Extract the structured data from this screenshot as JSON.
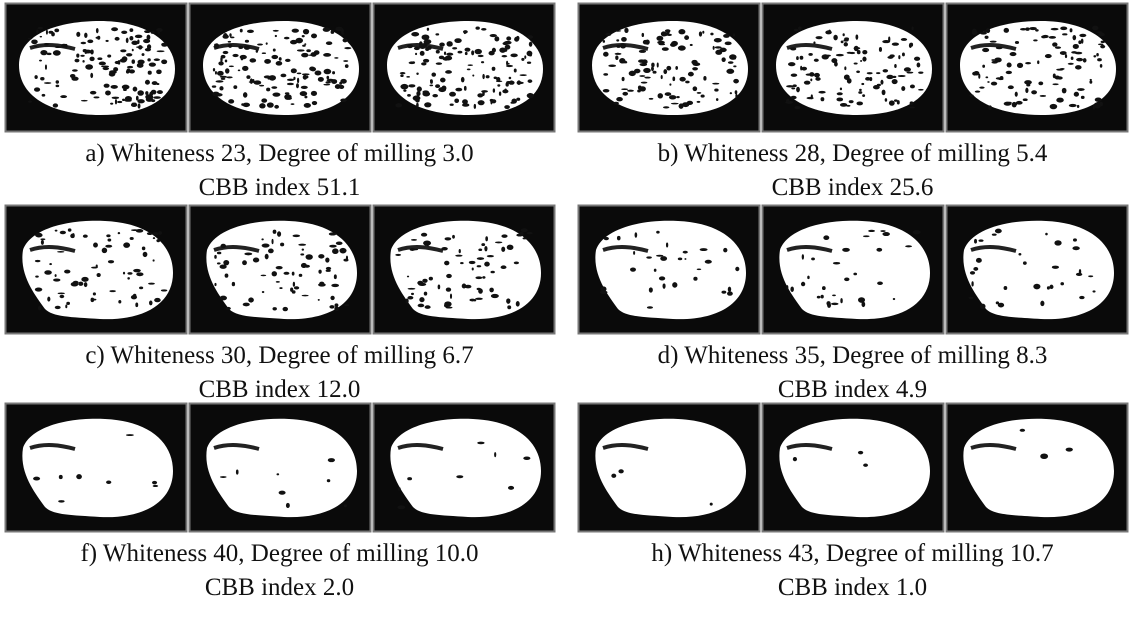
{
  "panels": [
    {
      "caption": "a) Whiteness 23, Degree of milling 3.0",
      "index": "CBB index 51.1"
    },
    {
      "caption": "b) Whiteness 28, Degree of milling 5.4",
      "index": "CBB index 25.6"
    },
    {
      "caption": "c) Whiteness 30, Degree of milling 6.7",
      "index": "CBB index 12.0"
    },
    {
      "caption": "d) Whiteness 35, Degree of milling 8.3",
      "index": "CBB index 4.9"
    },
    {
      "caption": "f) Whiteness 40, Degree of milling 10.0",
      "index": "CBB index 2.0"
    },
    {
      "caption": "h) Whiteness 43, Degree of milling 10.7",
      "index": "CBB index 1.0"
    }
  ]
}
